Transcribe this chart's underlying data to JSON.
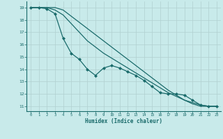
{
  "bg_color": "#c8eaea",
  "grid_color": "#b0d0d0",
  "line_color": "#1a6b6b",
  "xlabel": "Humidex (Indice chaleur)",
  "ylabel_vals": [
    11,
    12,
    13,
    14,
    15,
    16,
    17,
    18,
    19
  ],
  "xlim": [
    -0.5,
    23.5
  ],
  "ylim": [
    10.6,
    19.5
  ],
  "line1_x": [
    0,
    1,
    2,
    3,
    4,
    5,
    6,
    7,
    8,
    9,
    10,
    11,
    12,
    13,
    14,
    15,
    16,
    17,
    18,
    19,
    20,
    21,
    22,
    23
  ],
  "line1_y": [
    19.0,
    19.0,
    18.9,
    18.5,
    16.5,
    15.3,
    14.8,
    14.0,
    13.5,
    14.1,
    14.3,
    14.1,
    13.8,
    13.5,
    13.1,
    12.6,
    12.1,
    12.0,
    12.0,
    11.9,
    11.5,
    11.1,
    11.0,
    11.0
  ],
  "line2_x": [
    0,
    1,
    2,
    3,
    4,
    5,
    6,
    7,
    8,
    9,
    10,
    11,
    12,
    13,
    14,
    15,
    16,
    17,
    18,
    19,
    20,
    21,
    22,
    23
  ],
  "line2_y": [
    19.0,
    19.0,
    19.0,
    18.8,
    18.4,
    17.7,
    17.0,
    16.3,
    15.8,
    15.3,
    14.9,
    14.5,
    14.1,
    13.7,
    13.3,
    12.9,
    12.5,
    12.1,
    11.8,
    11.5,
    11.3,
    11.1,
    11.0,
    11.0
  ],
  "line3_x": [
    0,
    1,
    2,
    3,
    4,
    5,
    6,
    7,
    8,
    9,
    10,
    11,
    12,
    13,
    14,
    15,
    16,
    17,
    18,
    19,
    20,
    21,
    22,
    23
  ],
  "line3_y": [
    19.0,
    19.0,
    19.0,
    19.0,
    18.8,
    18.3,
    17.8,
    17.3,
    16.8,
    16.3,
    15.8,
    15.3,
    14.8,
    14.3,
    13.8,
    13.3,
    12.8,
    12.3,
    11.9,
    11.5,
    11.2,
    11.0,
    11.0,
    11.0
  ]
}
